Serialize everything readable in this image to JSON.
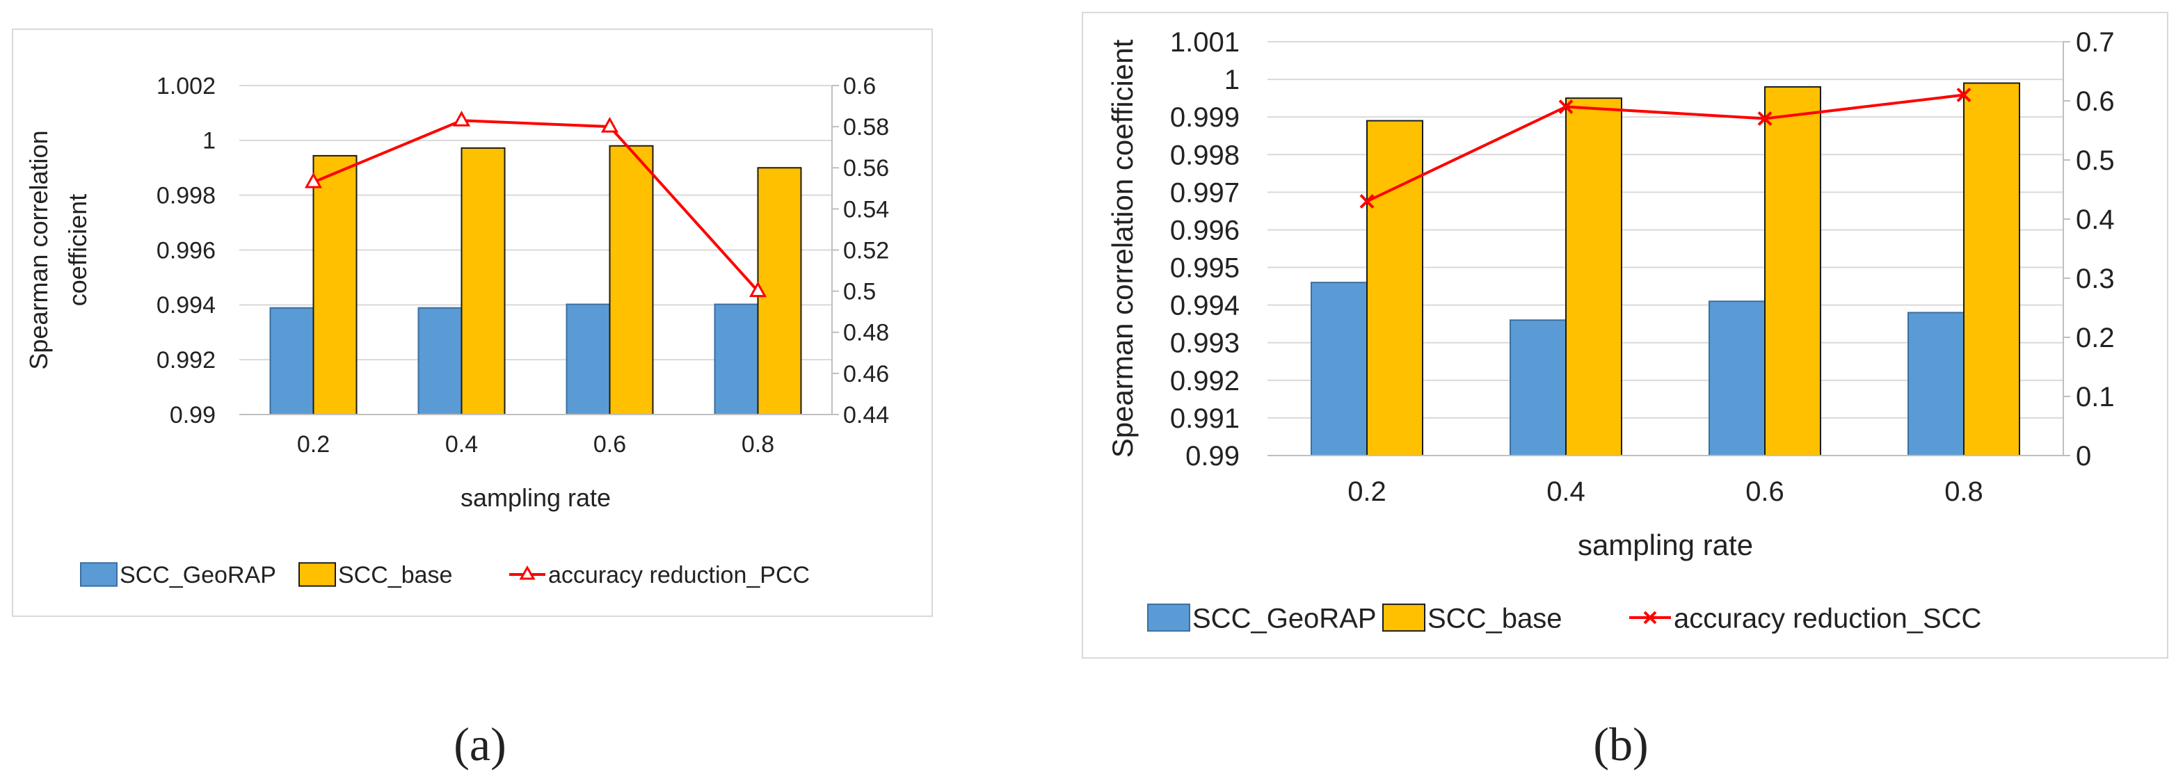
{
  "chart_data": [
    {
      "type": "bar",
      "panel_label": "(a)",
      "title": "",
      "xlabel": "sampling rate",
      "ylabel": "Spearman correlation coefficient",
      "categories": [
        "0.2",
        "0.4",
        "0.6",
        "0.8"
      ],
      "ylim": [
        0.99,
        1.002
      ],
      "yticks": [
        "0.99",
        "0.992",
        "0.994",
        "0.996",
        "0.998",
        "1",
        "1.002"
      ],
      "y2lim": [
        0.44,
        0.6
      ],
      "y2ticks": [
        "0.44",
        "0.46",
        "0.48",
        "0.5",
        "0.52",
        "0.54",
        "0.56",
        "0.58",
        "0.6"
      ],
      "grid": true,
      "legend_position": "bottom",
      "series": [
        {
          "name": "SCC_GeoRAP",
          "kind": "bar",
          "axis": "left",
          "color": "#5b9bd5",
          "values": [
            0.99389,
            0.99389,
            0.99402,
            0.99402
          ]
        },
        {
          "name": "SCC_base",
          "kind": "bar",
          "axis": "left",
          "color": "#ffc000",
          "values": [
            0.99944,
            0.99972,
            0.9998,
            0.999
          ]
        },
        {
          "name": "accuracy reduction_PCC",
          "kind": "line",
          "axis": "right",
          "color": "#ff0000",
          "marker": "triangle",
          "values": [
            0.553,
            0.583,
            0.58,
            0.5
          ]
        }
      ]
    },
    {
      "type": "bar",
      "panel_label": "(b)",
      "title": "",
      "xlabel": "sampling rate",
      "ylabel": "Spearman correlation coefficient",
      "categories": [
        "0.2",
        "0.4",
        "0.6",
        "0.8"
      ],
      "ylim": [
        0.99,
        1.001
      ],
      "yticks": [
        "0.99",
        "0.991",
        "0.992",
        "0.993",
        "0.994",
        "0.995",
        "0.996",
        "0.997",
        "0.998",
        "0.999",
        "1",
        "1.001"
      ],
      "y2lim": [
        0,
        0.7
      ],
      "y2ticks": [
        "0",
        "0.1",
        "0.2",
        "0.3",
        "0.4",
        "0.5",
        "0.6",
        "0.7"
      ],
      "grid": true,
      "legend_position": "bottom",
      "series": [
        {
          "name": "SCC_GeoRAP",
          "kind": "bar",
          "axis": "left",
          "color": "#5b9bd5",
          "values": [
            0.9946,
            0.9936,
            0.9941,
            0.9938
          ]
        },
        {
          "name": "SCC_base",
          "kind": "bar",
          "axis": "left",
          "color": "#ffc000",
          "values": [
            0.9989,
            0.9995,
            0.9998,
            0.9999
          ]
        },
        {
          "name": "accuracy reduction_SCC",
          "kind": "line",
          "axis": "right",
          "color": "#ff0000",
          "marker": "x",
          "values": [
            0.43,
            0.59,
            0.57,
            0.61
          ]
        }
      ]
    }
  ]
}
